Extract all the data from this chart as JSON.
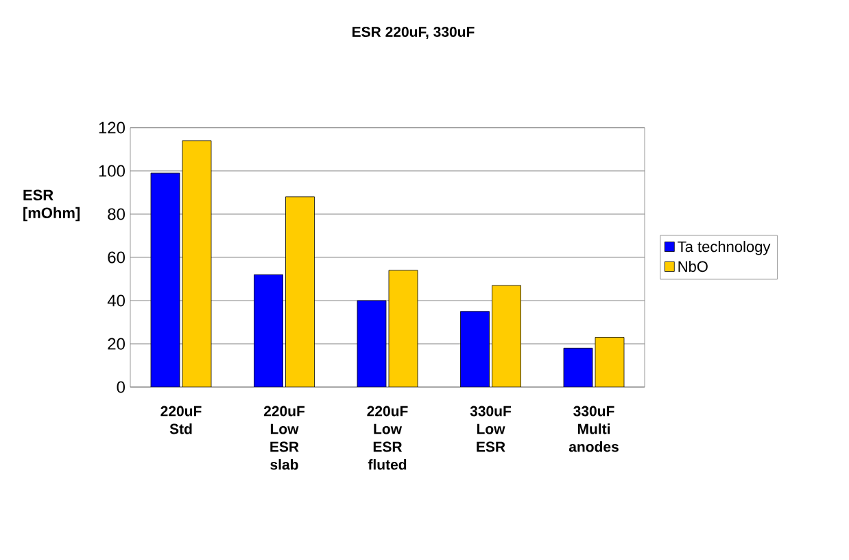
{
  "chart_data": {
    "type": "bar",
    "title": "ESR 220uF, 330uF",
    "ylabel": "ESR [mOhm]",
    "categories": [
      "220uF Std",
      "220uF Low ESR slab",
      "220uF Low ESR fluted",
      "330uF Low ESR",
      "330uF Multi anodes"
    ],
    "series": [
      {
        "name": "Ta technology",
        "color": "#0000ff",
        "values": [
          99,
          52,
          40,
          35,
          18
        ]
      },
      {
        "name": "NbO",
        "color": "#ffcc00",
        "values": [
          114,
          88,
          54,
          47,
          23
        ]
      }
    ],
    "ylim": [
      0,
      120
    ],
    "yticks": [
      0,
      20,
      40,
      60,
      80,
      100,
      120
    ],
    "grid": "y",
    "legend": "right"
  }
}
